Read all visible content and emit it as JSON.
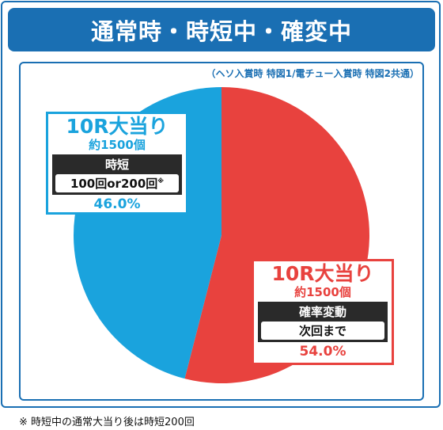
{
  "header": {
    "title": "通常時・時短中・確変中",
    "note": "（ヘソ入賞時 特図1/電チュー入賞時 特図2共通）"
  },
  "chart_data": {
    "type": "pie",
    "slices": [
      {
        "name": "10R大当り",
        "value": 54.0,
        "color": "#e8423e",
        "payout": "約1500個",
        "mode": "確率変動",
        "duration": "次回まで",
        "duration_note": "",
        "label": "54.0%"
      },
      {
        "name": "10R大当り",
        "value": 46.0,
        "color": "#1aa3dd",
        "payout": "約1500個",
        "mode": "時短",
        "duration": "100回or200回",
        "duration_note": "※",
        "label": "46.0%"
      }
    ]
  },
  "footnote": "※ 時短中の通常大当り後は時短200回"
}
